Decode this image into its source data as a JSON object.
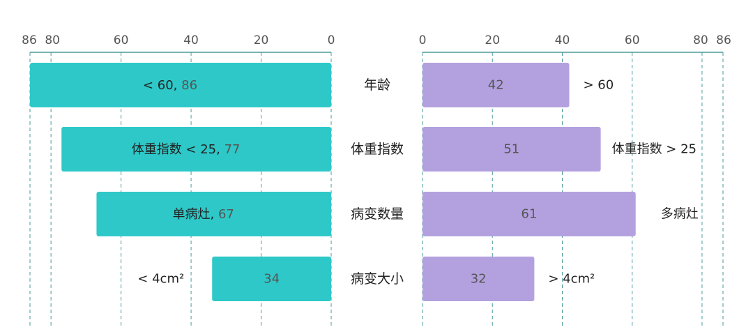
{
  "chart_data": {
    "type": "bar",
    "orientation": "horizontal-butterfly",
    "categories": [
      "年龄",
      "体重指数",
      "病变数量",
      "病变大小"
    ],
    "xlim": [
      0,
      86
    ],
    "ticks": [
      0,
      20,
      40,
      60,
      80,
      86
    ],
    "grid": true,
    "series": [
      {
        "side": "left",
        "color": "#2ec8c8",
        "group_labels": [
          "< 60,",
          "体重指数 < 25,",
          "单病灶,",
          "< 4cm²"
        ],
        "values": [
          86,
          77,
          67,
          34
        ]
      },
      {
        "side": "right",
        "color": "#b3a1df",
        "group_labels": [
          "> 60",
          "体重指数 > 25",
          "多病灶",
          "> 4cm²"
        ],
        "values": [
          42,
          51,
          61,
          32
        ]
      }
    ]
  }
}
